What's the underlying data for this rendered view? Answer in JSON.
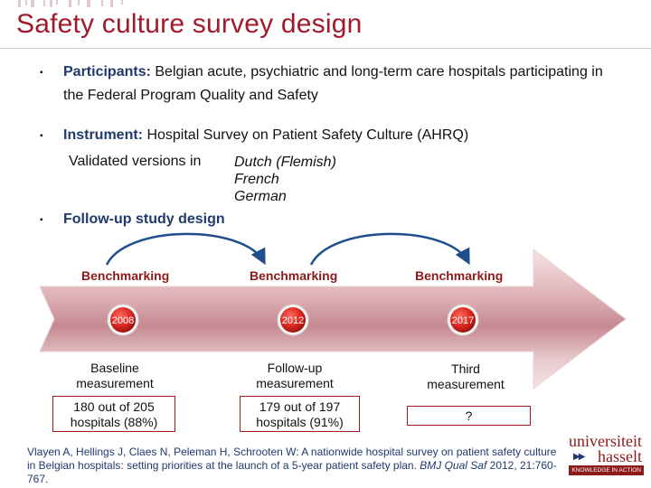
{
  "title": "Safety culture survey design",
  "bullets": [
    {
      "label": "Participants:",
      "text": "Belgian acute, psychiatric and long-term care hospitals participating in the Federal Program Quality and Safety"
    },
    {
      "label": "Instrument:",
      "text": "Hospital Survey on Patient Safety Culture (AHRQ)"
    },
    {
      "label": "Follow-up study design",
      "text": ""
    }
  ],
  "validated": {
    "label": "Validated versions in",
    "languages": [
      "Dutch (Flemish)",
      "French",
      "German"
    ]
  },
  "timeline": {
    "benchmark_label": "Benchmarking",
    "years": [
      "2008",
      "2012",
      "2017"
    ],
    "measurements": [
      {
        "line1": "Baseline",
        "line2": "measurement",
        "result_line1": "180 out of 205",
        "result_line2": "hospitals (88%)"
      },
      {
        "line1": "Follow-up",
        "line2": "measurement",
        "result_line1": "179 out of 197",
        "result_line2": "hospitals (91%)"
      },
      {
        "line1": "Third",
        "line2": "measurement",
        "result_line1": "?",
        "result_line2": ""
      }
    ]
  },
  "citation": {
    "text": "Vlayen A, Hellings J, Claes N, Peleman H, Schrooten W: A nationwide hospital survey on patient safety culture in Belgian hospitals: setting priorities at the launch of a 5-year patient safety plan.",
    "journal": "BMJ Qual Saf",
    "details": "2012, 21:760-767."
  },
  "logo": {
    "line1": "universiteit",
    "line2": "hasselt",
    "tagline": "KNOWLEDGE IN ACTION"
  },
  "colors": {
    "title": "#a11a2b",
    "accent": "#8c1a1a",
    "navy": "#1f3a6e"
  }
}
